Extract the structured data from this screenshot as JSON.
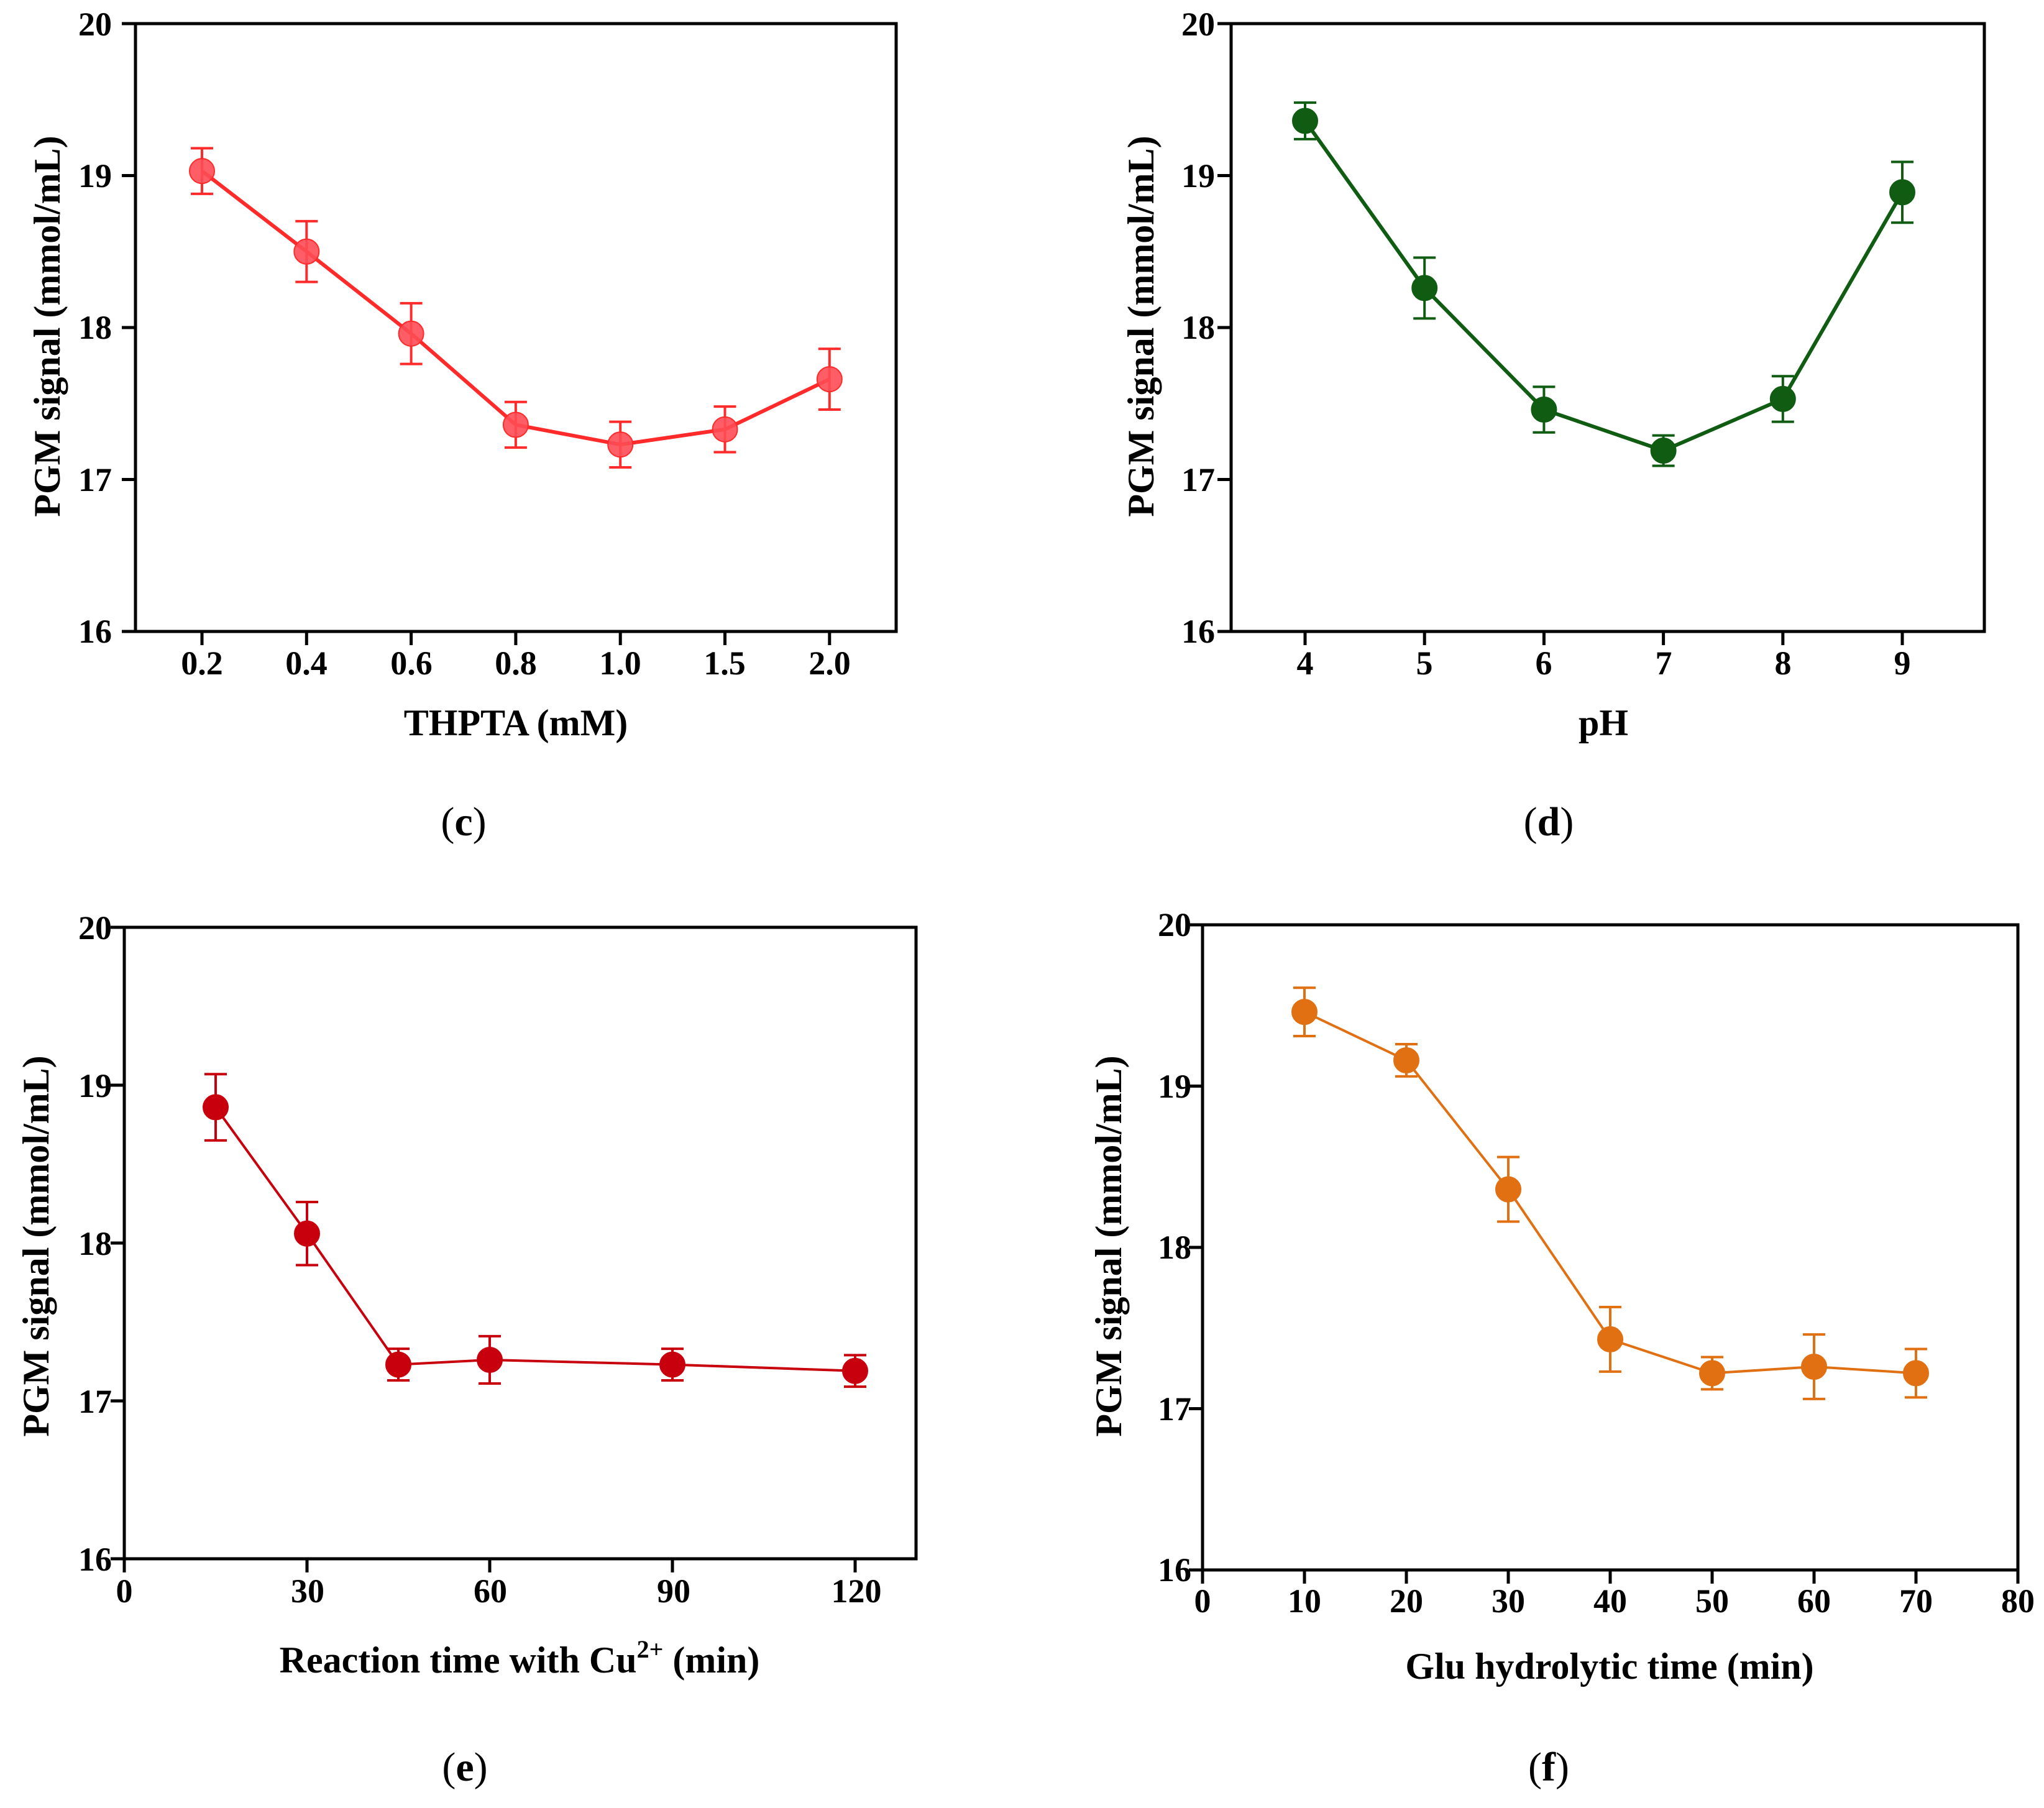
{
  "figure": {
    "panels": [
      {
        "id": "c",
        "label_open": "(",
        "label_letter": "c",
        "label_close": ")"
      },
      {
        "id": "d",
        "label_open": "(",
        "label_letter": "d",
        "label_close": ")"
      },
      {
        "id": "e",
        "label_open": "(",
        "label_letter": "e",
        "label_close": ")"
      },
      {
        "id": "f",
        "label_open": "(",
        "label_letter": "f",
        "label_close": ")"
      }
    ]
  },
  "chart_data": [
    {
      "id": "c",
      "type": "line",
      "x_scale": "categorical",
      "color": "#ff2a2a",
      "marker_fill": "#ff4d55",
      "marker_opacity": 0.9,
      "xlabel": "THPTA (mM)",
      "ylabel": "PGM signal (mmol/mL)",
      "categories": [
        "0.2",
        "0.4",
        "0.6",
        "0.8",
        "1.0",
        "1.5",
        "2.0"
      ],
      "values": [
        19.03,
        18.5,
        17.96,
        17.36,
        17.23,
        17.33,
        17.66
      ],
      "errors": [
        0.15,
        0.2,
        0.2,
        0.15,
        0.15,
        0.15,
        0.2
      ],
      "ylim": [
        16,
        20
      ],
      "yticks": [
        "16",
        "17",
        "18",
        "19",
        "20"
      ]
    },
    {
      "id": "d",
      "type": "line",
      "x_scale": "categorical",
      "color": "#0f5c12",
      "marker_fill": "#0f5c12",
      "marker_opacity": 1,
      "xlabel": "pH",
      "ylabel": "PGM signal (mmol/mL)",
      "categories": [
        "4",
        "5",
        "6",
        "7",
        "8",
        "9"
      ],
      "values": [
        19.36,
        18.26,
        17.46,
        17.19,
        17.53,
        18.89
      ],
      "errors": [
        0.12,
        0.2,
        0.15,
        0.1,
        0.15,
        0.2
      ],
      "ylim": [
        16,
        20
      ],
      "yticks": [
        "16",
        "17",
        "18",
        "19",
        "20"
      ]
    },
    {
      "id": "e",
      "type": "line",
      "x_scale": "numeric",
      "color": "#c8000d",
      "marker_fill": "#c8000d",
      "marker_opacity": 1,
      "xlabel_parts": [
        "Reaction time with Cu",
        "2+",
        " (min)"
      ],
      "ylabel": "PGM signal (mmol/mL)",
      "x": [
        15,
        30,
        45,
        60,
        90,
        120
      ],
      "values": [
        18.86,
        18.06,
        17.23,
        17.26,
        17.23,
        17.19
      ],
      "errors": [
        0.21,
        0.2,
        0.1,
        0.15,
        0.1,
        0.1
      ],
      "xlim": [
        0,
        130
      ],
      "xticks": [
        0,
        30,
        60,
        90,
        120
      ],
      "ylim": [
        16,
        20
      ],
      "yticks": [
        "16",
        "17",
        "18",
        "19",
        "20"
      ]
    },
    {
      "id": "f",
      "type": "line",
      "x_scale": "numeric",
      "color": "#e07012",
      "marker_fill": "#e07012",
      "marker_opacity": 1,
      "xlabel": "Glu hydrolytic time (min)",
      "ylabel": "PGM signal (mmol/mL)",
      "x": [
        10,
        20,
        30,
        40,
        50,
        60,
        70
      ],
      "values": [
        19.46,
        19.16,
        18.36,
        17.43,
        17.22,
        17.26,
        17.22
      ],
      "errors": [
        0.15,
        0.1,
        0.2,
        0.2,
        0.1,
        0.2,
        0.15
      ],
      "xlim": [
        0,
        80
      ],
      "xticks": [
        0,
        10,
        20,
        30,
        40,
        50,
        60,
        70,
        80
      ],
      "ylim": [
        16,
        20
      ],
      "yticks": [
        "16",
        "17",
        "18",
        "19",
        "20"
      ]
    }
  ]
}
